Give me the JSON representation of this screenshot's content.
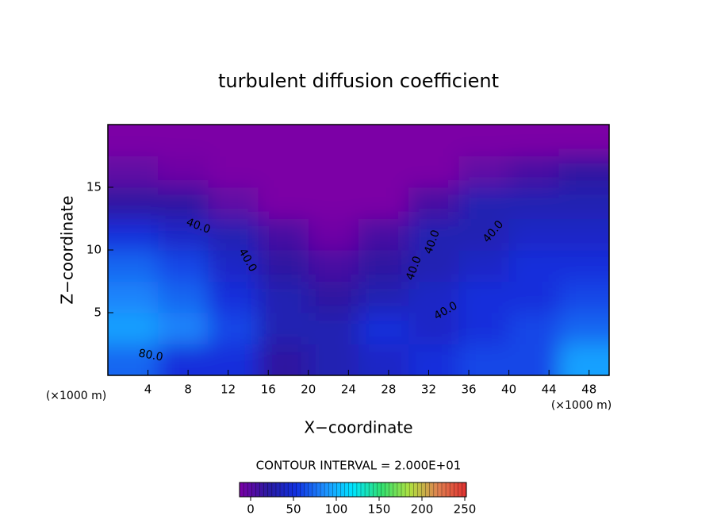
{
  "chart_data": {
    "type": "heatmap",
    "title": "turbulent diffusion coefficient",
    "x_label": "X−coordinate",
    "y_label": "Z−coordinate",
    "x_unit": "(×1000 m)",
    "x_unit_right": "(×1000 m)",
    "contour_note": "CONTOUR INTERVAL = 2.000E+01",
    "contour_labels": [
      "40.0",
      "40.0",
      "40.0",
      "40.0",
      "40.0",
      "40.0",
      "80.0"
    ],
    "x": [
      2.5,
      7.5,
      12.5,
      17.5,
      22.5,
      27.5,
      32.5,
      37.5,
      42.5,
      47.5
    ],
    "y": [
      1.25,
      3.75,
      6.25,
      8.75,
      11.25,
      13.75,
      16.25,
      18.75
    ],
    "z": [
      [
        80,
        60,
        60,
        30,
        40,
        50,
        60,
        70,
        70,
        100
      ],
      [
        100,
        90,
        70,
        40,
        40,
        60,
        50,
        60,
        70,
        80
      ],
      [
        90,
        80,
        60,
        40,
        30,
        40,
        50,
        60,
        60,
        70
      ],
      [
        80,
        70,
        50,
        30,
        20,
        30,
        40,
        50,
        60,
        60
      ],
      [
        60,
        50,
        40,
        20,
        5,
        20,
        40,
        40,
        50,
        50
      ],
      [
        30,
        30,
        10,
        0,
        0,
        0,
        20,
        40,
        40,
        40
      ],
      [
        10,
        5,
        0,
        0,
        0,
        0,
        0,
        10,
        20,
        30
      ],
      [
        0,
        0,
        0,
        0,
        0,
        0,
        0,
        0,
        0,
        0
      ]
    ],
    "colorscale": [
      "#7b00a6",
      "#2a1aa0",
      "#1030e0",
      "#1e90ff",
      "#00e5ff",
      "#30e070",
      "#b0e040",
      "#e08050",
      "#e03030"
    ],
    "clim": [
      0,
      250
    ],
    "cticks": [
      0,
      50,
      100,
      150,
      200,
      250
    ],
    "xlim": [
      0,
      50
    ],
    "ylim": [
      0,
      20
    ],
    "xticks": [
      4,
      8,
      12,
      16,
      20,
      24,
      28,
      32,
      36,
      40,
      44,
      48
    ],
    "yticks": [
      5,
      10,
      15
    ]
  }
}
